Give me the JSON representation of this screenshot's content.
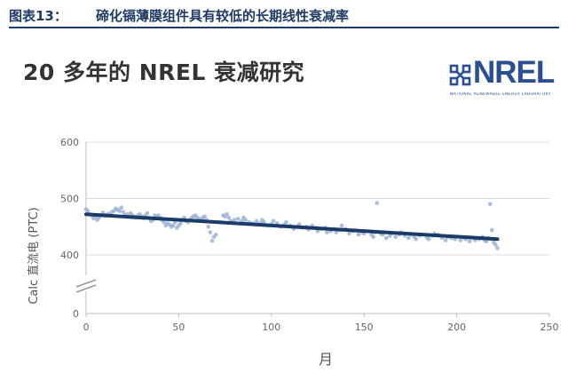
{
  "caption": {
    "label": "图表13：",
    "title": "碲化镉薄膜组件具有较低的长期线性衰减率"
  },
  "heading": "20 多年的 NREL 衰减研究",
  "logo": {
    "word": "NREL",
    "subtext": "NATIONAL RENEWABLE ENERGY LABORATORY"
  },
  "colors": {
    "caption": "#1f3a66",
    "points": "#9bb3d6",
    "trend": "#1b3a68",
    "logo": "#2b4f93"
  },
  "chart_data": {
    "type": "scatter",
    "xlabel": "月",
    "ylabel": "Calc 直流电 (PTC)",
    "xlim": [
      0,
      250
    ],
    "ylim": [
      0,
      600
    ],
    "axis_break": true,
    "x_ticks": [
      "0",
      "50",
      "100",
      "150",
      "200",
      "250"
    ],
    "y_ticks": [
      "0",
      "400",
      "500",
      "600"
    ],
    "grid": "horizontal",
    "series": [
      {
        "name": "",
        "kind": "points",
        "points": [
          [
            0,
            481
          ],
          [
            1,
            478
          ],
          [
            2,
            472
          ],
          [
            3,
            470
          ],
          [
            4,
            465
          ],
          [
            5,
            468
          ],
          [
            6,
            462
          ],
          [
            7,
            466
          ],
          [
            8,
            470
          ],
          [
            9,
            475
          ],
          [
            10,
            469
          ],
          [
            11,
            471
          ],
          [
            12,
            473
          ],
          [
            13,
            470
          ],
          [
            14,
            476
          ],
          [
            15,
            478
          ],
          [
            16,
            482
          ],
          [
            17,
            480
          ],
          [
            18,
            478
          ],
          [
            19,
            484
          ],
          [
            20,
            476
          ],
          [
            21,
            470
          ],
          [
            22,
            472
          ],
          [
            23,
            468
          ],
          [
            24,
            474
          ],
          [
            25,
            470
          ],
          [
            26,
            468
          ],
          [
            27,
            466
          ],
          [
            28,
            470
          ],
          [
            29,
            472
          ],
          [
            30,
            468
          ],
          [
            31,
            465
          ],
          [
            32,
            470
          ],
          [
            33,
            474
          ],
          [
            34,
            466
          ],
          [
            35,
            460
          ],
          [
            36,
            462
          ],
          [
            37,
            470
          ],
          [
            38,
            468
          ],
          [
            39,
            470
          ],
          [
            40,
            466
          ],
          [
            41,
            462
          ],
          [
            42,
            458
          ],
          [
            43,
            452
          ],
          [
            44,
            456
          ],
          [
            45,
            454
          ],
          [
            46,
            450
          ],
          [
            47,
            452
          ],
          [
            48,
            458
          ],
          [
            49,
            448
          ],
          [
            50,
            452
          ],
          [
            51,
            456
          ],
          [
            52,
            462
          ],
          [
            53,
            466
          ],
          [
            54,
            460
          ],
          [
            55,
            458
          ],
          [
            56,
            462
          ],
          [
            57,
            466
          ],
          [
            58,
            468
          ],
          [
            59,
            470
          ],
          [
            60,
            466
          ],
          [
            61,
            464
          ],
          [
            62,
            462
          ],
          [
            63,
            466
          ],
          [
            64,
            468
          ],
          [
            65,
            462
          ],
          [
            66,
            450
          ],
          [
            67,
            440
          ],
          [
            68,
            425
          ],
          [
            69,
            432
          ],
          [
            70,
            436
          ],
          [
            72,
            458
          ],
          [
            74,
            470
          ],
          [
            75,
            468
          ],
          [
            76,
            472
          ],
          [
            77,
            466
          ],
          [
            78,
            460
          ],
          [
            80,
            462
          ],
          [
            82,
            464
          ],
          [
            84,
            460
          ],
          [
            85,
            466
          ],
          [
            86,
            462
          ],
          [
            88,
            458
          ],
          [
            90,
            456
          ],
          [
            92,
            460
          ],
          [
            94,
            456
          ],
          [
            95,
            462
          ],
          [
            96,
            458
          ],
          [
            98,
            452
          ],
          [
            100,
            454
          ],
          [
            101,
            460
          ],
          [
            103,
            456
          ],
          [
            105,
            450
          ],
          [
            107,
            454
          ],
          [
            108,
            458
          ],
          [
            110,
            452
          ],
          [
            112,
            446
          ],
          [
            114,
            450
          ],
          [
            115,
            454
          ],
          [
            117,
            448
          ],
          [
            119,
            450
          ],
          [
            120,
            445
          ],
          [
            122,
            452
          ],
          [
            124,
            448
          ],
          [
            125,
            442
          ],
          [
            127,
            446
          ],
          [
            129,
            448
          ],
          [
            130,
            440
          ],
          [
            132,
            442
          ],
          [
            134,
            446
          ],
          [
            135,
            440
          ],
          [
            137,
            444
          ],
          [
            138,
            452
          ],
          [
            140,
            446
          ],
          [
            142,
            438
          ],
          [
            144,
            442
          ],
          [
            145,
            444
          ],
          [
            147,
            436
          ],
          [
            149,
            440
          ],
          [
            150,
            438
          ],
          [
            152,
            442
          ],
          [
            154,
            436
          ],
          [
            155,
            432
          ],
          [
            156,
            440
          ],
          [
            157,
            492
          ],
          [
            159,
            438
          ],
          [
            160,
            436
          ],
          [
            162,
            430
          ],
          [
            164,
            434
          ],
          [
            165,
            438
          ],
          [
            167,
            432
          ],
          [
            169,
            436
          ],
          [
            170,
            440
          ],
          [
            172,
            434
          ],
          [
            174,
            430
          ],
          [
            175,
            436
          ],
          [
            177,
            432
          ],
          [
            178,
            428
          ],
          [
            180,
            434
          ],
          [
            182,
            436
          ],
          [
            184,
            430
          ],
          [
            185,
            428
          ],
          [
            187,
            434
          ],
          [
            188,
            438
          ],
          [
            190,
            436
          ],
          [
            192,
            430
          ],
          [
            194,
            426
          ],
          [
            195,
            432
          ],
          [
            197,
            430
          ],
          [
            199,
            428
          ],
          [
            200,
            432
          ],
          [
            202,
            426
          ],
          [
            204,
            430
          ],
          [
            205,
            428
          ],
          [
            207,
            424
          ],
          [
            209,
            430
          ],
          [
            210,
            426
          ],
          [
            212,
            428
          ],
          [
            214,
            432
          ],
          [
            215,
            426
          ],
          [
            216,
            424
          ],
          [
            217,
            430
          ],
          [
            218,
            490
          ],
          [
            219,
            444
          ],
          [
            220,
            422
          ],
          [
            221,
            418
          ],
          [
            222,
            412
          ]
        ]
      },
      {
        "name": "",
        "kind": "trendline",
        "points": [
          [
            0,
            472
          ],
          [
            222,
            428
          ]
        ]
      }
    ]
  }
}
